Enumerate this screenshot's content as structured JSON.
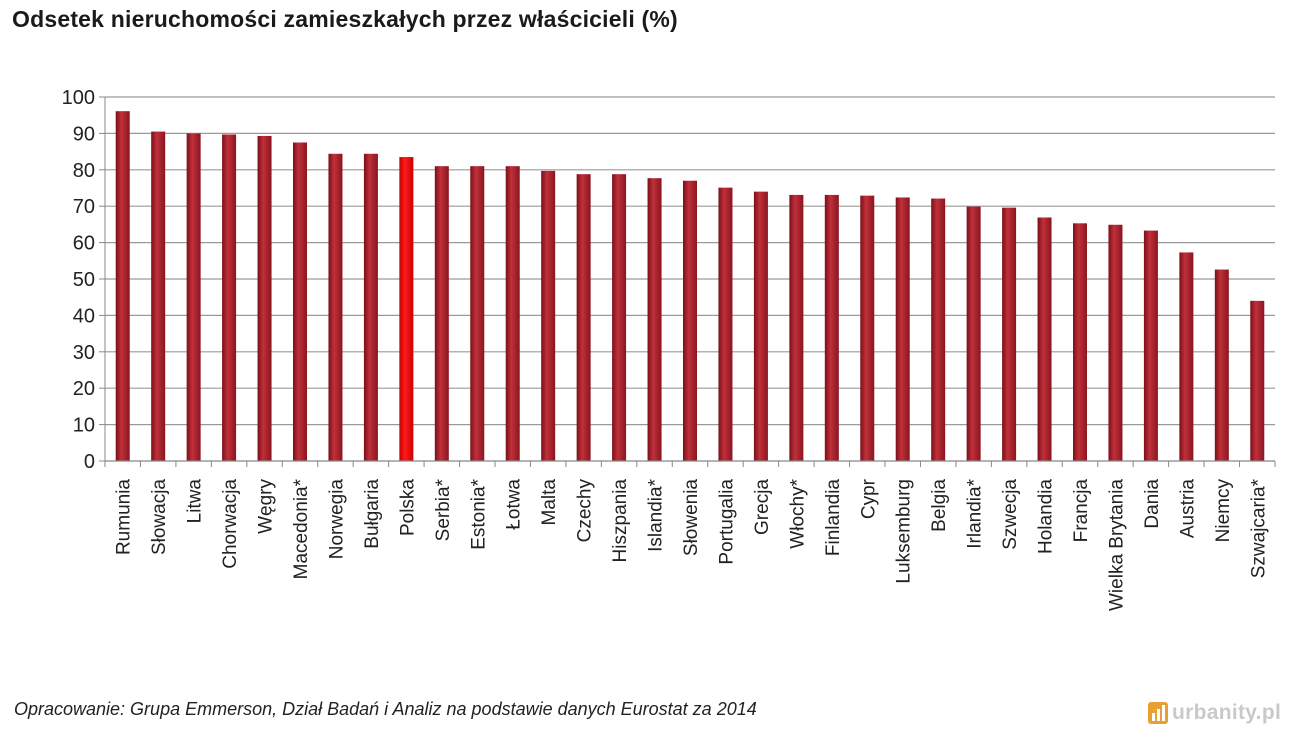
{
  "chart_data": {
    "type": "bar",
    "title": "Odsetek nieruchomości zamieszkałych przez właścicieli (%)",
    "categories": [
      "Rumunia",
      "Słowacja",
      "Litwa",
      "Chorwacja",
      "Węgry",
      "Macedonia*",
      "Norwegia",
      "Bułgaria",
      "Polska",
      "Serbia*",
      "Estonia*",
      "Łotwa",
      "Malta",
      "Czechy",
      "Hiszpania",
      "Islandia*",
      "Słowenia",
      "Portugalia",
      "Grecja",
      "Włochy*",
      "Finlandia",
      "Cypr",
      "Luksemburg",
      "Belgia",
      "Irlandia*",
      "Szwecja",
      "Holandia",
      "Francja",
      "Wielka Brytania",
      "Dania",
      "Austria",
      "Niemcy",
      "Szwajcaria*"
    ],
    "values": [
      96.1,
      90.5,
      90.0,
      89.7,
      89.3,
      87.5,
      84.4,
      84.4,
      83.5,
      81.0,
      81.0,
      81.0,
      79.7,
      78.8,
      78.8,
      77.7,
      77.0,
      75.1,
      74.0,
      73.1,
      73.1,
      72.9,
      72.4,
      72.1,
      69.9,
      69.6,
      66.9,
      65.3,
      64.9,
      63.3,
      57.3,
      52.6,
      44.0
    ],
    "highlight": "Polska",
    "ylim": [
      0,
      100
    ],
    "yticks": [
      0,
      10,
      20,
      30,
      40,
      50,
      60,
      70,
      80,
      90,
      100
    ],
    "grid": true,
    "colors": {
      "bar": "#a8202a",
      "bar_highlight": "#e00000",
      "grid": "#9a9a9a"
    }
  },
  "source": "Opracowanie: Grupa Emmerson, Dział Badań i Analiz  na podstawie danych Eurostat za 2014",
  "logo_text": "urbanity.pl"
}
